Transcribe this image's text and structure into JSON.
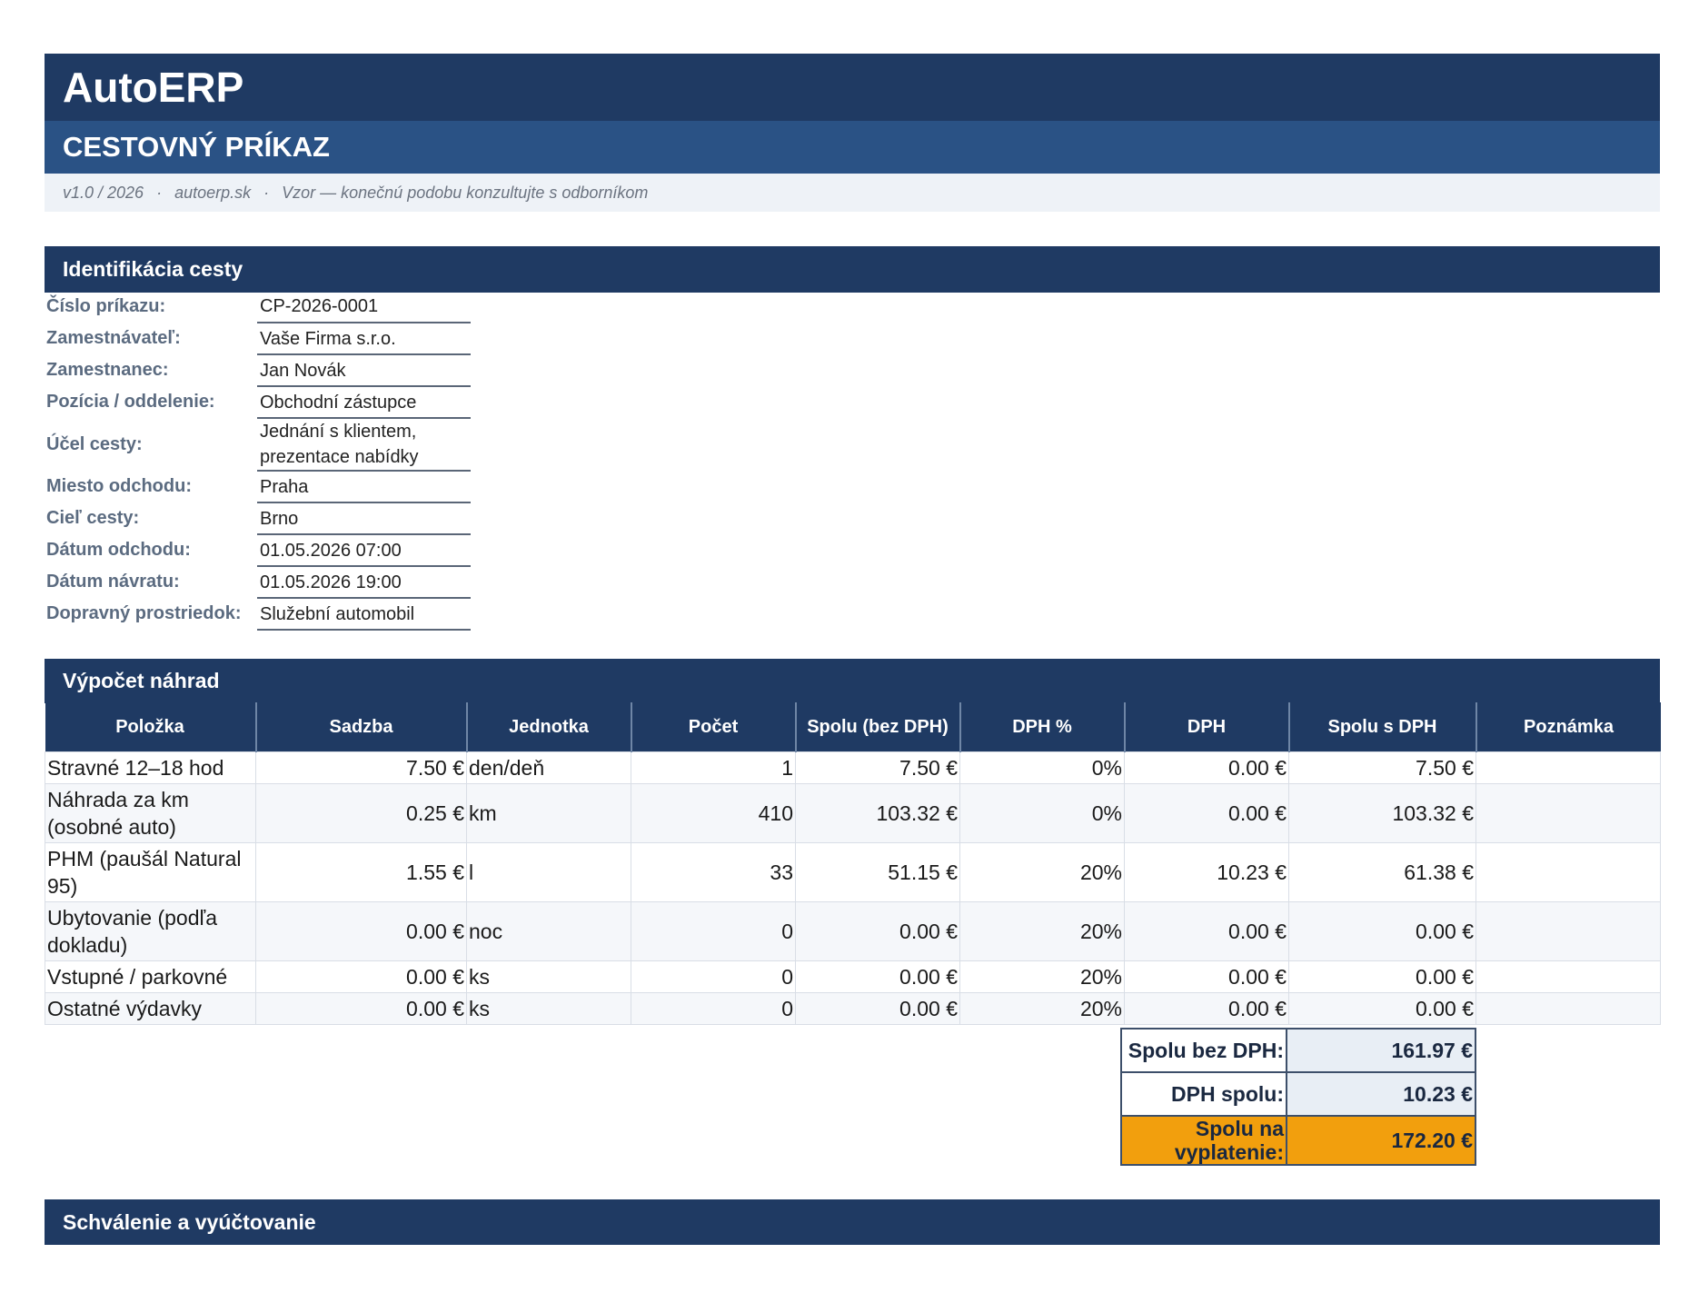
{
  "header": {
    "brand": "AutoERP",
    "doc_title": "CESTOVNÝ PRÍKAZ",
    "meta": [
      "v1.0 / 2026",
      "autoerp.sk",
      "Vzor — konečnú podobu konzultujte s odborníkom"
    ]
  },
  "identification": {
    "title": "Identifikácia cesty",
    "rows": [
      {
        "label": "Číslo príkazu:",
        "value": "CP-2026-0001"
      },
      {
        "label": "Zamestnávateľ:",
        "value": "Vaše Firma s.r.o."
      },
      {
        "label": "Zamestnanec:",
        "value": "Jan Novák"
      },
      {
        "label": "Pozícia / oddelenie:",
        "value": "Obchodní zástupce"
      },
      {
        "label": "Účel cesty:",
        "value": "Jednání s klientem, prezentace nabídky"
      },
      {
        "label": "Miesto odchodu:",
        "value": "Praha"
      },
      {
        "label": "Cieľ cesty:",
        "value": "Brno"
      },
      {
        "label": "Dátum odchodu:",
        "value": "01.05.2026 07:00"
      },
      {
        "label": "Dátum návratu:",
        "value": "01.05.2026 19:00"
      },
      {
        "label": "Dopravný prostriedok:",
        "value": "Služební automobil"
      }
    ]
  },
  "expenses": {
    "title": "Výpočet náhrad",
    "columns": [
      "Položka",
      "Sadzba",
      "Jednotka",
      "Počet",
      "Spolu (bez DPH)",
      "DPH %",
      "DPH",
      "Spolu s DPH",
      "Poznámka"
    ],
    "rows": [
      {
        "item": "Stravné 12–18 hod",
        "rate": "7.50 €",
        "unit": "den/deň",
        "count": "1",
        "net": "7.50 €",
        "vat_pct": "0%",
        "vat": "0.00 €",
        "gross": "7.50 €",
        "note": ""
      },
      {
        "item": "Náhrada za km (osobné auto)",
        "rate": "0.25 €",
        "unit": "km",
        "count": "410",
        "net": "103.32 €",
        "vat_pct": "0%",
        "vat": "0.00 €",
        "gross": "103.32 €",
        "note": ""
      },
      {
        "item": "PHM (paušál Natural 95)",
        "rate": "1.55 €",
        "unit": "l",
        "count": "33",
        "net": "51.15 €",
        "vat_pct": "20%",
        "vat": "10.23 €",
        "gross": "61.38 €",
        "note": ""
      },
      {
        "item": "Ubytovanie (podľa dokladu)",
        "rate": "0.00 €",
        "unit": "noc",
        "count": "0",
        "net": "0.00 €",
        "vat_pct": "20%",
        "vat": "0.00 €",
        "gross": "0.00 €",
        "note": ""
      },
      {
        "item": "Vstupné / parkovné",
        "rate": "0.00 €",
        "unit": "ks",
        "count": "0",
        "net": "0.00 €",
        "vat_pct": "20%",
        "vat": "0.00 €",
        "gross": "0.00 €",
        "note": ""
      },
      {
        "item": "Ostatné výdavky",
        "rate": "0.00 €",
        "unit": "ks",
        "count": "0",
        "net": "0.00 €",
        "vat_pct": "20%",
        "vat": "0.00 €",
        "gross": "0.00 €",
        "note": ""
      }
    ],
    "totals": {
      "net_label": "Spolu bez DPH:",
      "net_value": "161.97 €",
      "vat_label": "DPH spolu:",
      "vat_value": "10.23 €",
      "grand_label": "Spolu na vyplatenie:",
      "grand_value": "172.20 €",
      "grand_color": "#f29f0d"
    }
  },
  "approval": {
    "title": "Schválenie a vyúčtovanie"
  },
  "colors": {
    "primary": "#1f3a63",
    "secondary": "#2a5285",
    "accent": "#f29f0d"
  }
}
